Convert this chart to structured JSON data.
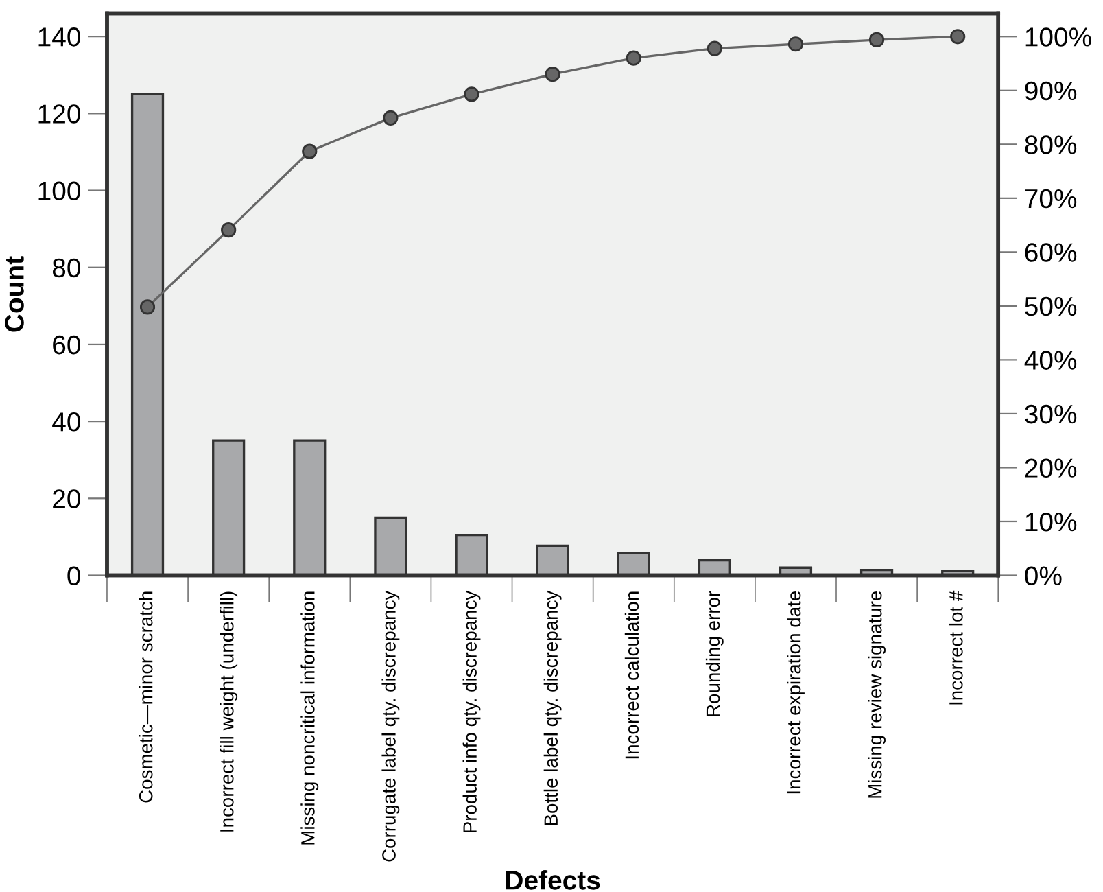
{
  "chart_data": {
    "type": "bar",
    "xlabel": "Defects",
    "ylabel": "Count",
    "categories": [
      "Cosmetic—minor scratch",
      "Incorrect fill weight (underfill)",
      "Missing noncritical information",
      "Corrugate label qty. discrepancy",
      "Product info qty. discrepancy",
      "Bottle label qty. discrepancy",
      "Incorrect calculation",
      "Rounding error",
      "Incorrect expiration date",
      "Missing review signature",
      "Incorrect lot #"
    ],
    "series": [
      {
        "color": "#a8a9ab",
        "values": [
          125,
          35,
          35,
          15,
          10.5,
          7.7,
          5.8,
          3.9,
          2,
          1.4,
          1.1
        ]
      },
      {
        "type": "line",
        "axis": "y2",
        "color": "#666666",
        "marker": "circle",
        "values": [
          49.8,
          64.1,
          78.7,
          84.9,
          89.3,
          93,
          96,
          97.8,
          98.6,
          99.4,
          100
        ]
      }
    ],
    "ylim": [
      0,
      146
    ],
    "yticks": [
      0,
      20,
      40,
      60,
      80,
      100,
      120,
      140
    ],
    "y2lim": [
      0,
      104.3
    ],
    "y2ticks": [
      {
        "value": 0,
        "label": "0%"
      },
      {
        "value": 10,
        "label": "10%"
      },
      {
        "value": 20,
        "label": "20%"
      },
      {
        "value": 30,
        "label": "30%"
      },
      {
        "value": 40,
        "label": "40%"
      },
      {
        "value": 50,
        "label": "50%"
      },
      {
        "value": 60,
        "label": "60%"
      },
      {
        "value": 70,
        "label": "70%"
      },
      {
        "value": 80,
        "label": "80%"
      },
      {
        "value": 90,
        "label": "90%"
      },
      {
        "value": 100,
        "label": "100%"
      }
    ],
    "grid": false,
    "legend": false
  }
}
